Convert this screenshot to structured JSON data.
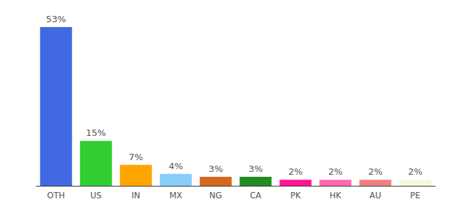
{
  "chart_data": {
    "type": "bar",
    "categories": [
      "OTH",
      "US",
      "IN",
      "MX",
      "NG",
      "CA",
      "PK",
      "HK",
      "AU",
      "PE"
    ],
    "values": [
      53,
      15,
      7,
      4,
      3,
      3,
      2,
      2,
      2,
      2
    ],
    "value_labels": [
      "53%",
      "15%",
      "7%",
      "4%",
      "3%",
      "3%",
      "2%",
      "2%",
      "2%",
      "2%"
    ],
    "colors": [
      "#4169e1",
      "#32cd32",
      "#ffa500",
      "#87cefa",
      "#d2691e",
      "#228b22",
      "#ff1493",
      "#ff69b4",
      "#f08080",
      "#f8f8dc"
    ],
    "ylim": [
      0,
      53
    ],
    "grid": false,
    "data_labels": true,
    "tick_labels": "x"
  }
}
